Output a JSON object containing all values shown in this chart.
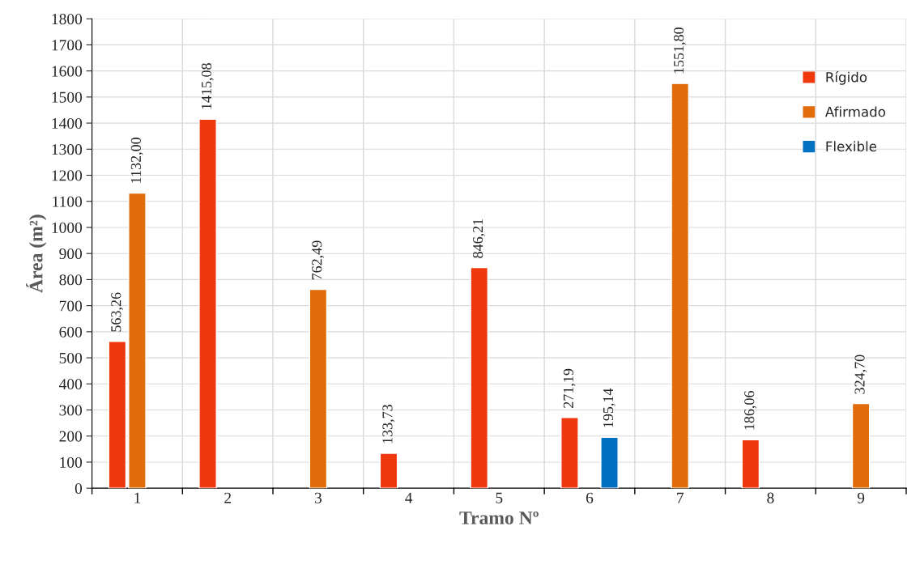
{
  "chart_data": {
    "type": "bar",
    "xlabel": "Tramo Nº",
    "ylabel": "Área (m²)",
    "categories": [
      "1",
      "2",
      "3",
      "4",
      "5",
      "6",
      "7",
      "8",
      "9"
    ],
    "series": [
      {
        "name": "Rígido",
        "color": "#f0380f",
        "values": [
          563.26,
          1415.08,
          null,
          133.73,
          846.21,
          271.19,
          null,
          186.06,
          null
        ],
        "value_labels": [
          "563,26",
          "1415,08",
          null,
          "133,73",
          "846,21",
          "271,19",
          null,
          "186,06",
          null
        ]
      },
      {
        "name": "Afirmado",
        "color": "#e26b0a",
        "values": [
          1132.0,
          null,
          762.49,
          null,
          null,
          null,
          1551.8,
          null,
          324.7
        ],
        "value_labels": [
          "1132,00",
          null,
          "762,49",
          null,
          null,
          null,
          "1551,80",
          null,
          "324,70"
        ]
      },
      {
        "name": "Flexible",
        "color": "#0070c0",
        "values": [
          null,
          null,
          null,
          null,
          null,
          195.14,
          null,
          null,
          null
        ],
        "value_labels": [
          null,
          null,
          null,
          null,
          null,
          "195,14",
          null,
          null,
          null
        ]
      }
    ],
    "ylim": [
      0,
      1800
    ],
    "yticks": [
      0,
      100,
      200,
      300,
      400,
      500,
      600,
      700,
      800,
      900,
      1000,
      1100,
      1200,
      1300,
      1400,
      1500,
      1600,
      1700,
      1800
    ],
    "grid": true,
    "legend": "right"
  }
}
